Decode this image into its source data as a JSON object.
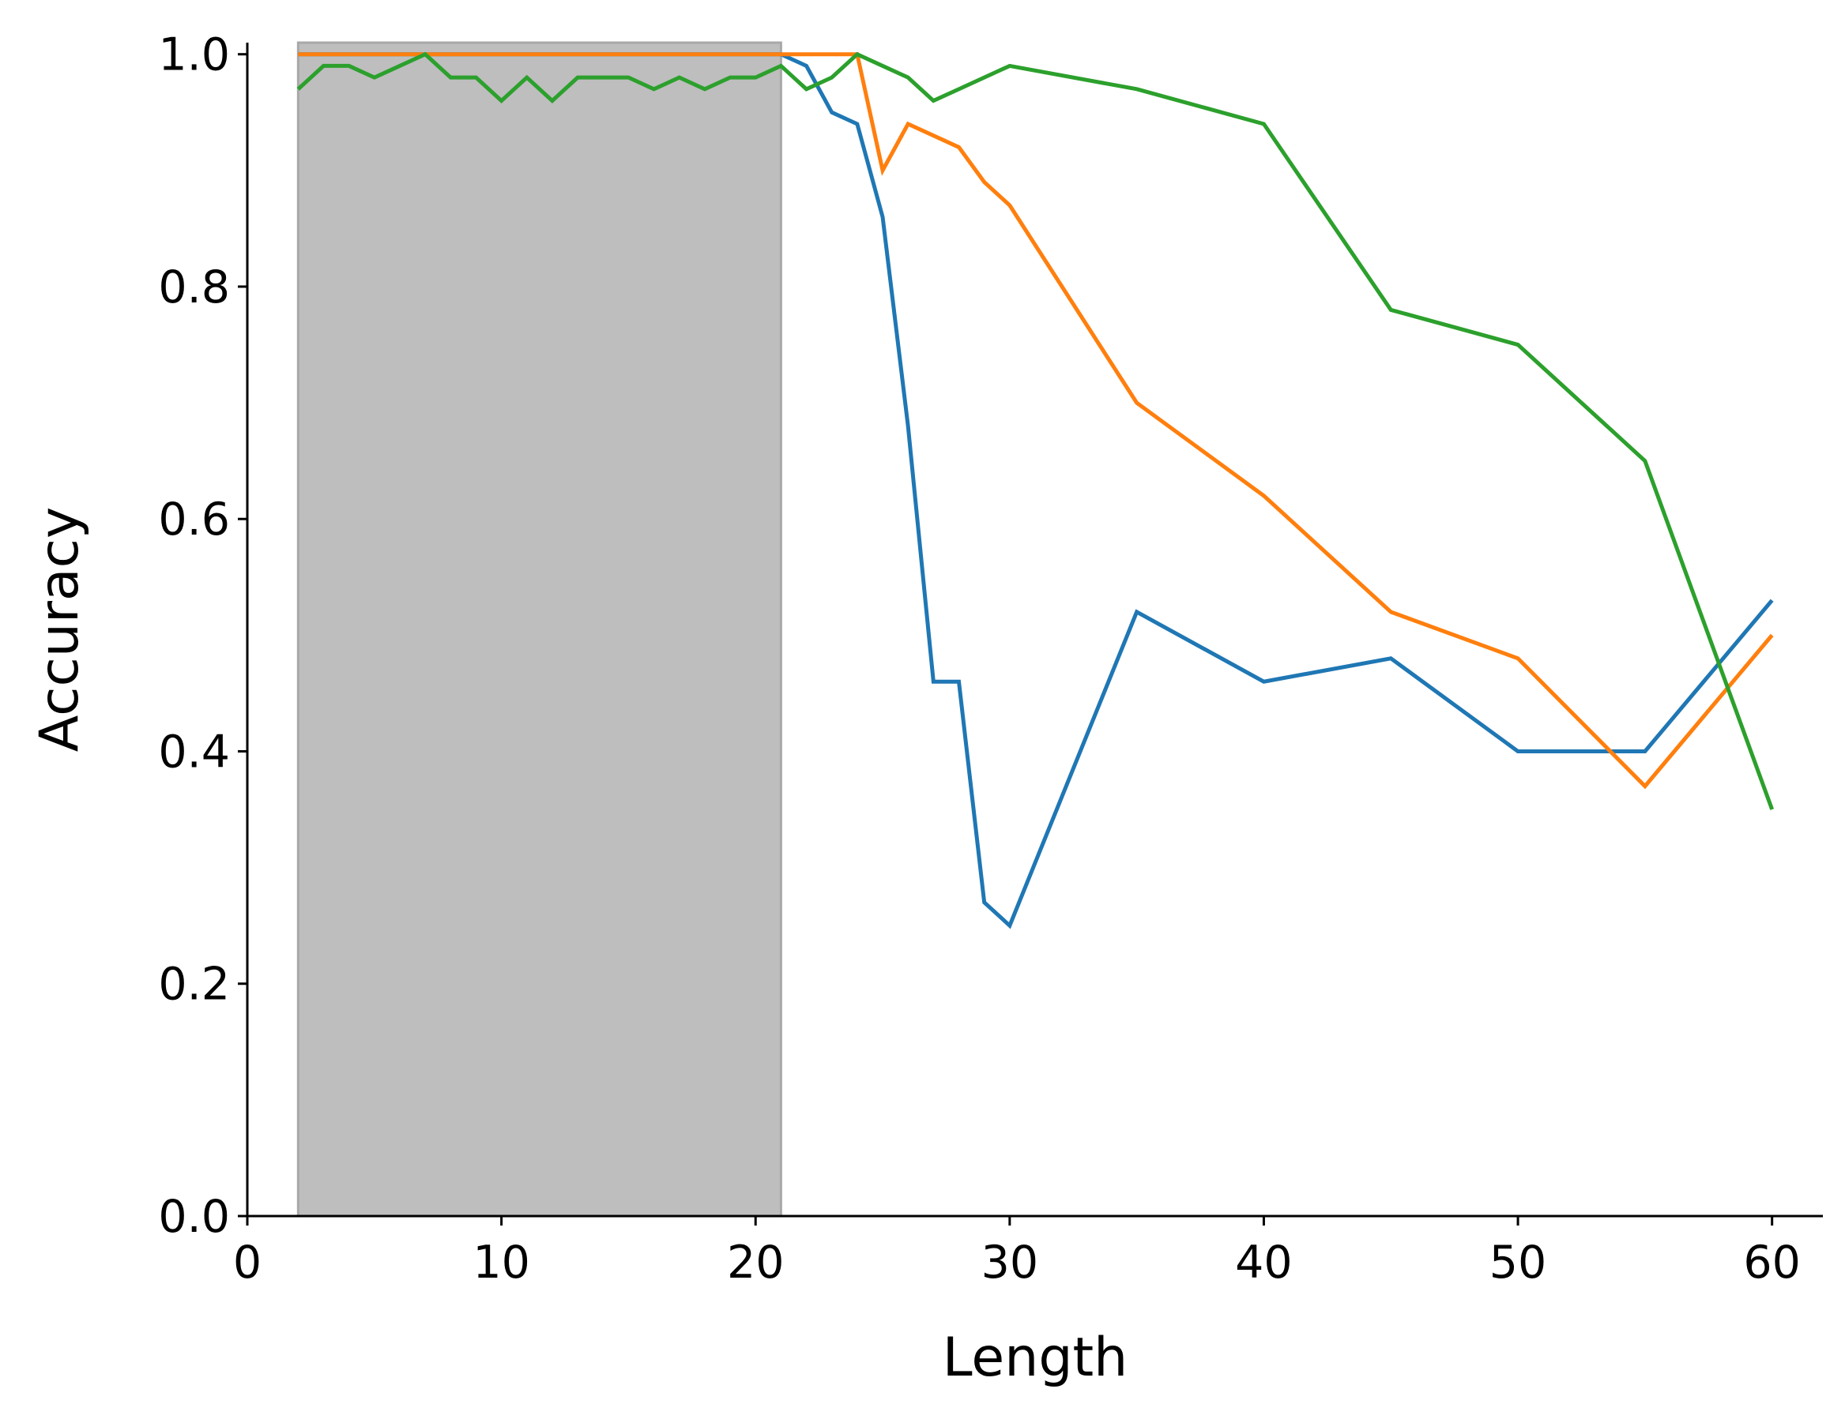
{
  "chart_data": {
    "type": "line",
    "x_label": "Length",
    "y_label": "Accuracy",
    "x": [
      2,
      3,
      4,
      5,
      6,
      7,
      8,
      9,
      10,
      11,
      12,
      13,
      14,
      15,
      16,
      17,
      18,
      19,
      20,
      21,
      22,
      23,
      24,
      25,
      26,
      27,
      28,
      29,
      30,
      35,
      40,
      45,
      50,
      55,
      60
    ],
    "series": [
      {
        "color": "#1f77b4",
        "values": [
          1,
          1,
          1,
          1,
          1,
          1,
          1,
          1,
          1,
          1,
          1,
          1,
          1,
          1,
          1,
          1,
          1,
          1,
          1,
          1,
          0.99,
          0.95,
          0.94,
          0.86,
          0.68,
          0.46,
          0.46,
          0.27,
          0.25,
          0.52,
          0.46,
          0.48,
          0.4,
          0.4,
          0.53
        ]
      },
      {
        "color": "#ff7f0e",
        "values": [
          1,
          1,
          1,
          1,
          1,
          1,
          1,
          1,
          1,
          1,
          1,
          1,
          1,
          1,
          1,
          1,
          1,
          1,
          1,
          1,
          1,
          1,
          1,
          0.9,
          0.94,
          0.93,
          0.92,
          0.89,
          0.87,
          0.7,
          0.62,
          0.52,
          0.48,
          0.37,
          0.5
        ]
      },
      {
        "color": "#2ca02c",
        "values": [
          0.97,
          0.99,
          0.99,
          0.98,
          0.99,
          1,
          0.98,
          0.98,
          0.96,
          0.98,
          0.96,
          0.98,
          0.98,
          0.98,
          0.97,
          0.98,
          0.97,
          0.98,
          0.98,
          0.99,
          0.97,
          0.98,
          1,
          0.99,
          0.98,
          0.96,
          0.97,
          0.98,
          0.99,
          0.97,
          0.94,
          0.78,
          0.75,
          0.65,
          0.35
        ]
      }
    ],
    "highlight_xrange": [
      2,
      21
    ],
    "highlight_color": "#bebebe",
    "xlim": [
      0,
      62
    ],
    "ylim": [
      0,
      1.01
    ],
    "xticks": [
      0,
      10,
      20,
      30,
      40,
      50,
      60
    ],
    "yticks": [
      {
        "value": 0,
        "label": "0.0"
      },
      0.2,
      0.4,
      0.6,
      0.8,
      {
        "value": 1,
        "label": "1.0"
      }
    ],
    "grid": false
  }
}
